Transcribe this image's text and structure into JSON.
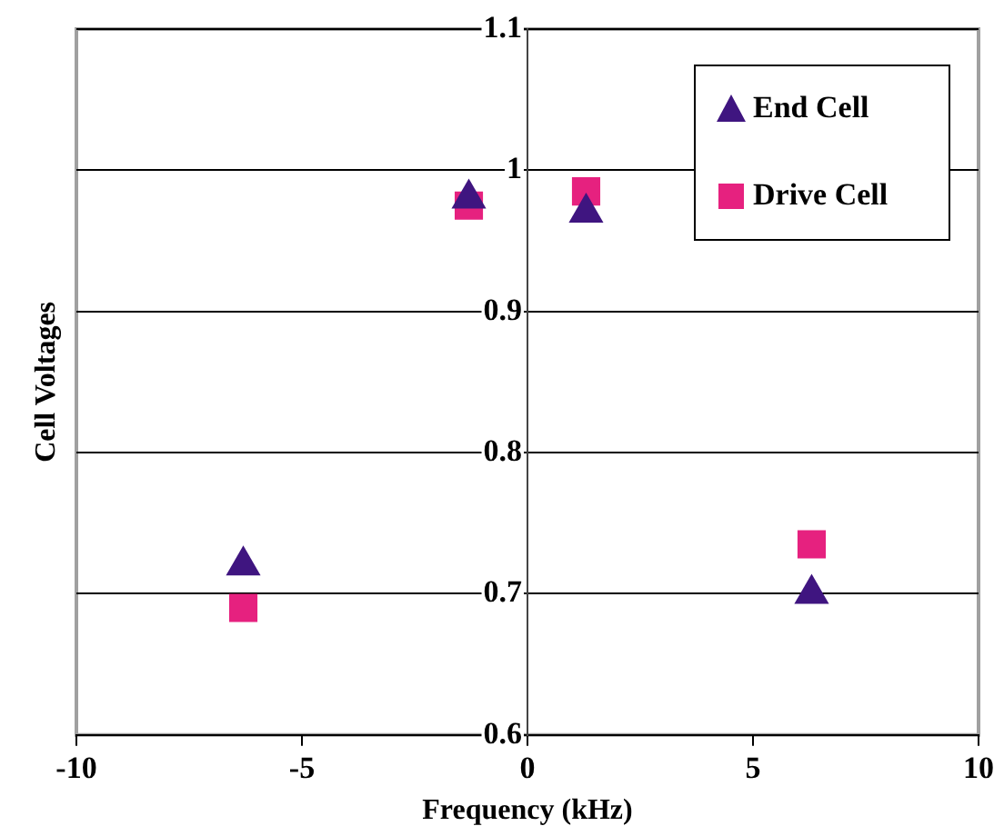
{
  "chart_data": {
    "type": "scatter",
    "xlabel": "Frequency (kHz)",
    "ylabel": "Cell Voltages",
    "xlim": [
      -10,
      10
    ],
    "xticks": [
      -10,
      -5,
      0,
      5,
      10
    ],
    "ylim": [
      0.6,
      1.1
    ],
    "yticks": [
      0.6,
      0.7,
      0.8,
      0.9,
      1,
      1.1
    ],
    "grid": "y",
    "legend": "top right",
    "series": [
      {
        "name": "End Cell",
        "color": "#3f1580",
        "marker": "triangle",
        "x": [
          -6.3,
          -1.3,
          1.3,
          6.3
        ],
        "values": [
          0.72,
          0.98,
          0.97,
          0.7
        ]
      },
      {
        "name": "Drive Cell",
        "color": "#e6217f",
        "marker": "square",
        "x": [
          -6.3,
          -1.3,
          1.3,
          6.3
        ],
        "values": [
          0.69,
          0.975,
          0.985,
          0.735
        ]
      }
    ]
  }
}
